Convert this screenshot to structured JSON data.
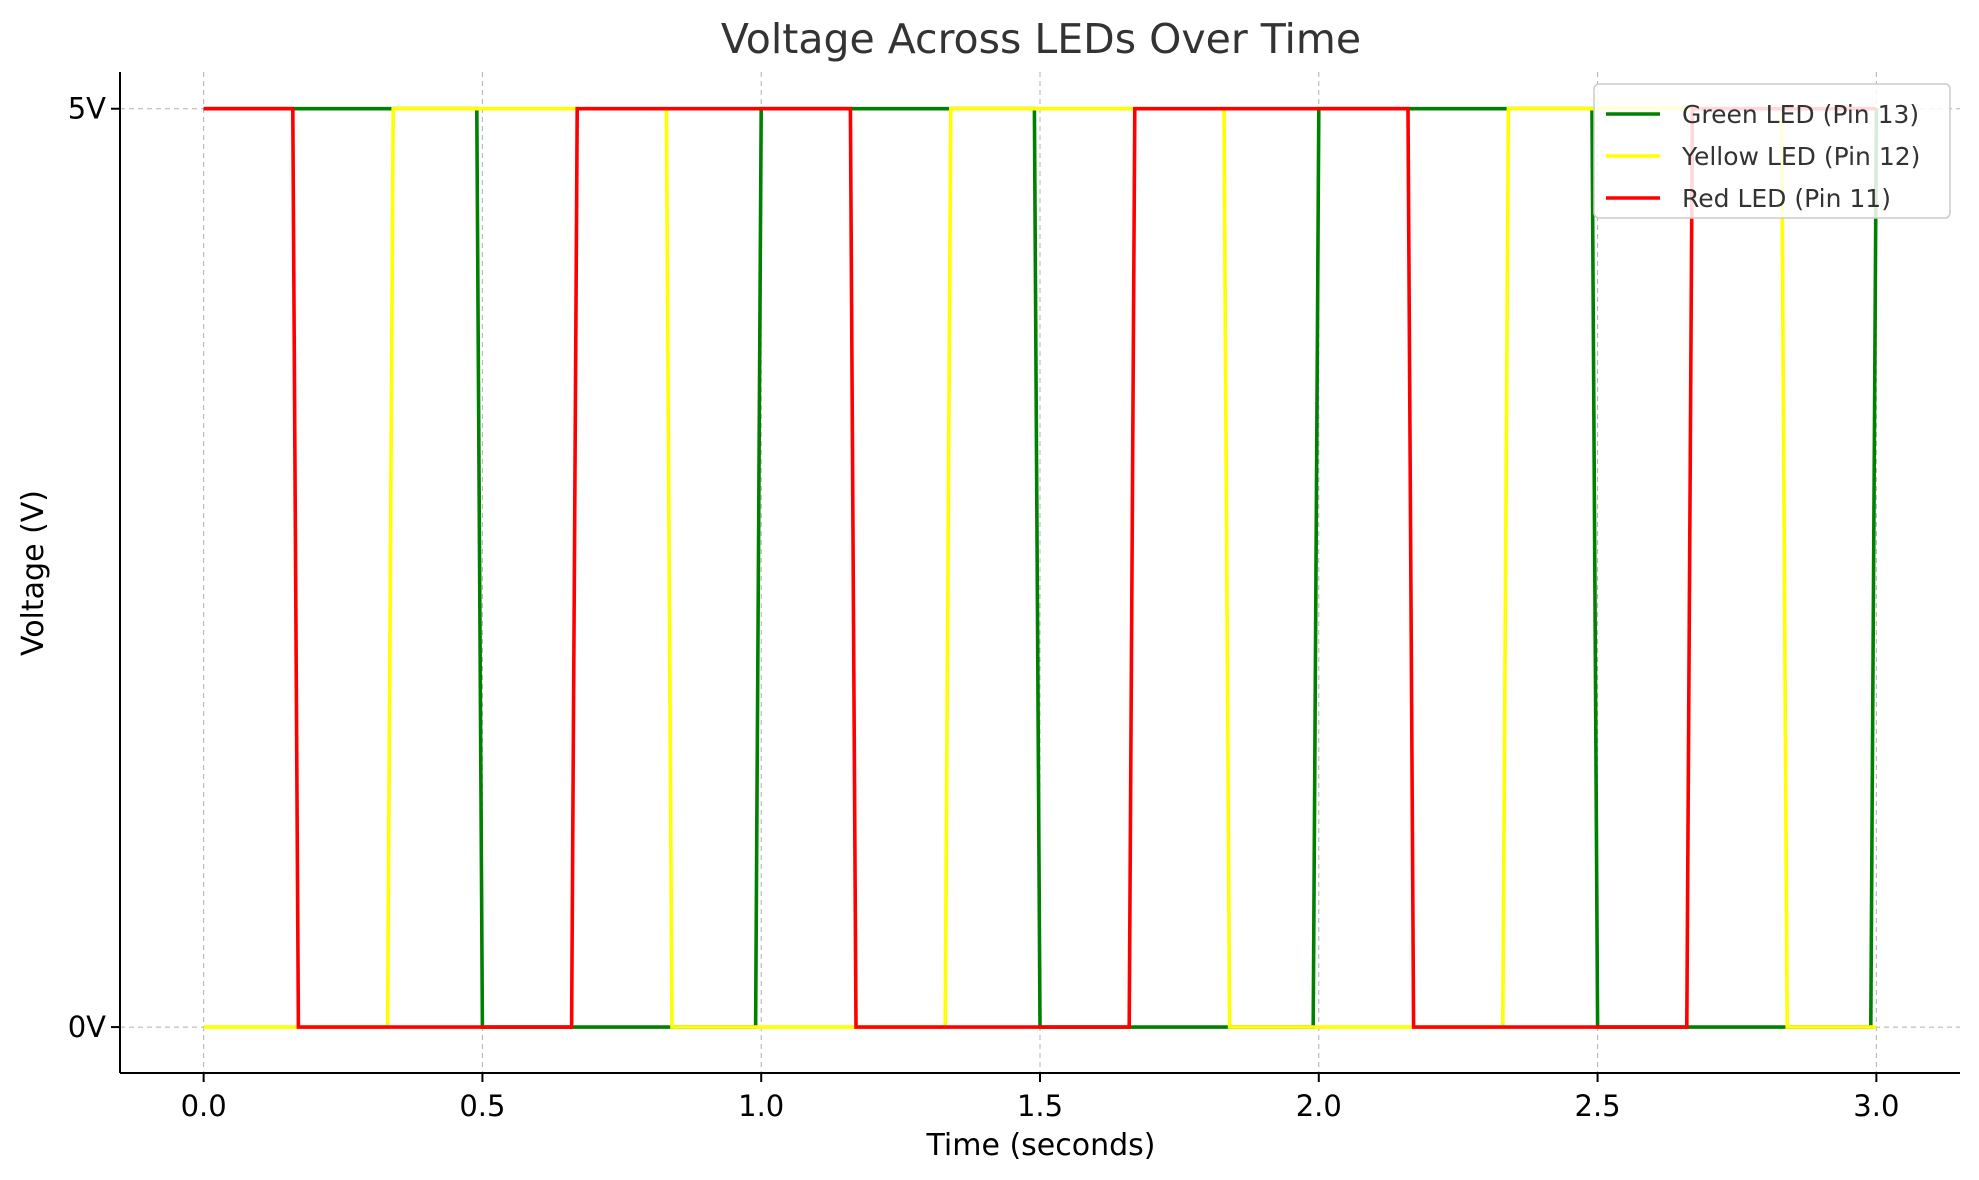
{
  "chart_data": {
    "type": "line",
    "title": "Voltage Across LEDs Over Time",
    "xlabel": "Time (seconds)",
    "ylabel": "Voltage (V)",
    "xlim": [
      -0.15,
      3.15
    ],
    "ylim": [
      -0.25,
      5.2
    ],
    "x_ticks": [
      0.0,
      0.5,
      1.0,
      1.5,
      2.0,
      2.5,
      3.0
    ],
    "x_tick_labels": [
      "0.0",
      "0.5",
      "1.0",
      "1.5",
      "2.0",
      "2.5",
      "3.0"
    ],
    "y_ticks": [
      0,
      5
    ],
    "y_tick_labels": [
      "0V",
      "5V"
    ],
    "grid": true,
    "legend_position": "top-right",
    "series": [
      {
        "name": "Green LED (Pin 13)",
        "color": "#008000",
        "x": [
          0.0,
          0.49,
          0.5,
          0.99,
          1.0,
          1.49,
          1.5,
          1.99,
          2.0,
          2.49,
          2.5,
          2.99,
          3.0
        ],
        "y": [
          5,
          5,
          0,
          0,
          5,
          5,
          0,
          0,
          5,
          5,
          0,
          0,
          5
        ]
      },
      {
        "name": "Yellow LED (Pin 12)",
        "color": "#ffff00",
        "x": [
          0.0,
          0.33,
          0.34,
          0.83,
          0.84,
          1.33,
          1.34,
          1.83,
          1.84,
          2.33,
          2.34,
          2.83,
          2.84,
          3.0
        ],
        "y": [
          0,
          0,
          5,
          5,
          0,
          0,
          5,
          5,
          0,
          0,
          5,
          5,
          0,
          0
        ]
      },
      {
        "name": "Red LED (Pin 11)",
        "color": "#ff0000",
        "x": [
          0.0,
          0.16,
          0.17,
          0.66,
          0.67,
          1.16,
          1.17,
          1.66,
          1.67,
          2.16,
          2.17,
          2.66,
          2.67,
          3.0
        ],
        "y": [
          5,
          5,
          0,
          0,
          5,
          5,
          0,
          0,
          5,
          5,
          0,
          0,
          5,
          5
        ]
      }
    ]
  }
}
